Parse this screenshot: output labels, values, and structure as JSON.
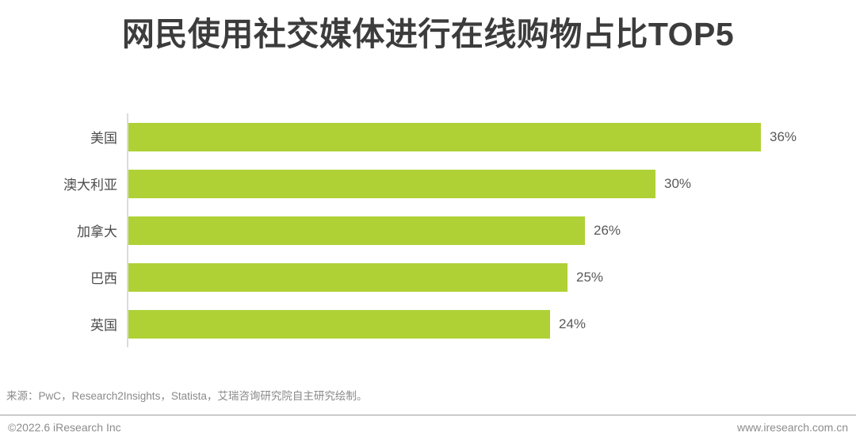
{
  "title": "网民使用社交媒体进行在线购物占比TOP5",
  "chart_data": {
    "type": "bar",
    "orientation": "horizontal",
    "title": "网民使用社交媒体进行在线购物占比TOP5",
    "categories": [
      "美国",
      "澳大利亚",
      "加拿大",
      "巴西",
      "英国"
    ],
    "values": [
      36,
      30,
      26,
      25,
      24
    ],
    "value_labels": [
      "36%",
      "30%",
      "26%",
      "25%",
      "24%"
    ],
    "unit": "%",
    "xlim": [
      0,
      36
    ],
    "bar_color": "#AFD136",
    "axis_color": "#DBDBDB",
    "grid": false,
    "legend": false,
    "value_label_position": "end-of-bar"
  },
  "source_note": "来源：PwC，Research2Insights，Statista，艾瑞咨询研究院自主研究绘制。",
  "footer": {
    "copyright": "©2022.6 iResearch Inc",
    "website": "www.iresearch.com.cn"
  }
}
